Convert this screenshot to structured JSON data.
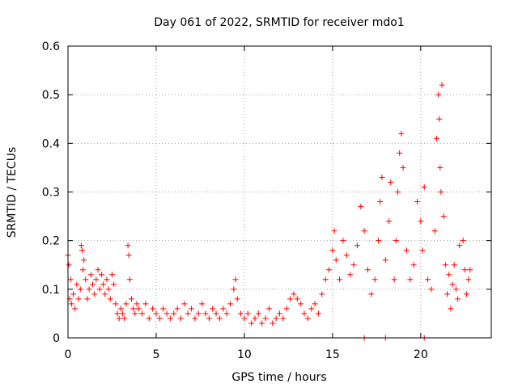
{
  "chart_data": {
    "type": "scatter",
    "title": "Day 061 of 2022, SRMTID for receiver mdo1",
    "xlabel": "GPS time / hours",
    "ylabel": "SRMTID / TECUs",
    "xlim": [
      0,
      24
    ],
    "ylim": [
      0,
      0.6
    ],
    "xticks": [
      {
        "value": 0,
        "label": "0"
      },
      {
        "value": 5,
        "label": "5"
      },
      {
        "value": 10,
        "label": "10"
      },
      {
        "value": 15,
        "label": "15"
      },
      {
        "value": 20,
        "label": "20"
      }
    ],
    "yticks": [
      {
        "value": 0,
        "label": "0"
      },
      {
        "value": 0.1,
        "label": "0.1"
      },
      {
        "value": 0.2,
        "label": "0.2"
      },
      {
        "value": 0.3,
        "label": "0.3"
      },
      {
        "value": 0.4,
        "label": "0.4"
      },
      {
        "value": 0.5,
        "label": "0.5"
      },
      {
        "value": 0.6,
        "label": "0.6"
      }
    ],
    "grid": true,
    "marker": "+",
    "series": [
      {
        "name": "SRMTID",
        "color": "#ff0000",
        "points": [
          [
            0.0,
            0.17
          ],
          [
            0.05,
            0.15
          ],
          [
            0.1,
            0.08
          ],
          [
            0.15,
            0.12
          ],
          [
            0.2,
            0.07
          ],
          [
            0.3,
            0.09
          ],
          [
            0.4,
            0.06
          ],
          [
            0.5,
            0.11
          ],
          [
            0.6,
            0.08
          ],
          [
            0.7,
            0.1
          ],
          [
            0.75,
            0.19
          ],
          [
            0.8,
            0.18
          ],
          [
            0.85,
            0.14
          ],
          [
            0.9,
            0.16
          ],
          [
            1.0,
            0.12
          ],
          [
            1.1,
            0.08
          ],
          [
            1.2,
            0.1
          ],
          [
            1.3,
            0.13
          ],
          [
            1.4,
            0.11
          ],
          [
            1.5,
            0.09
          ],
          [
            1.6,
            0.12
          ],
          [
            1.7,
            0.14
          ],
          [
            1.8,
            0.1
          ],
          [
            1.9,
            0.13
          ],
          [
            2.0,
            0.11
          ],
          [
            2.1,
            0.09
          ],
          [
            2.2,
            0.12
          ],
          [
            2.3,
            0.1
          ],
          [
            2.4,
            0.08
          ],
          [
            2.5,
            0.13
          ],
          [
            2.6,
            0.11
          ],
          [
            2.7,
            0.07
          ],
          [
            2.8,
            0.05
          ],
          [
            2.9,
            0.04
          ],
          [
            3.0,
            0.06
          ],
          [
            3.1,
            0.05
          ],
          [
            3.2,
            0.04
          ],
          [
            3.3,
            0.07
          ],
          [
            3.4,
            0.19
          ],
          [
            3.45,
            0.17
          ],
          [
            3.5,
            0.12
          ],
          [
            3.6,
            0.08
          ],
          [
            3.7,
            0.06
          ],
          [
            3.8,
            0.05
          ],
          [
            3.9,
            0.07
          ],
          [
            4.0,
            0.06
          ],
          [
            4.2,
            0.05
          ],
          [
            4.4,
            0.07
          ],
          [
            4.6,
            0.04
          ],
          [
            4.8,
            0.06
          ],
          [
            5.0,
            0.05
          ],
          [
            5.2,
            0.04
          ],
          [
            5.4,
            0.06
          ],
          [
            5.6,
            0.05
          ],
          [
            5.8,
            0.04
          ],
          [
            6.0,
            0.05
          ],
          [
            6.2,
            0.06
          ],
          [
            6.4,
            0.04
          ],
          [
            6.6,
            0.07
          ],
          [
            6.8,
            0.05
          ],
          [
            7.0,
            0.06
          ],
          [
            7.2,
            0.04
          ],
          [
            7.4,
            0.05
          ],
          [
            7.6,
            0.07
          ],
          [
            7.8,
            0.05
          ],
          [
            8.0,
            0.04
          ],
          [
            8.2,
            0.06
          ],
          [
            8.4,
            0.05
          ],
          [
            8.6,
            0.04
          ],
          [
            8.8,
            0.06
          ],
          [
            9.0,
            0.05
          ],
          [
            9.2,
            0.07
          ],
          [
            9.4,
            0.1
          ],
          [
            9.5,
            0.12
          ],
          [
            9.6,
            0.08
          ],
          [
            9.8,
            0.05
          ],
          [
            10.0,
            0.04
          ],
          [
            10.2,
            0.05
          ],
          [
            10.4,
            0.03
          ],
          [
            10.6,
            0.04
          ],
          [
            10.8,
            0.05
          ],
          [
            11.0,
            0.03
          ],
          [
            11.2,
            0.04
          ],
          [
            11.4,
            0.06
          ],
          [
            11.6,
            0.03
          ],
          [
            11.8,
            0.04
          ],
          [
            12.0,
            0.05
          ],
          [
            12.2,
            0.04
          ],
          [
            12.4,
            0.06
          ],
          [
            12.6,
            0.08
          ],
          [
            12.8,
            0.09
          ],
          [
            13.0,
            0.08
          ],
          [
            13.2,
            0.07
          ],
          [
            13.4,
            0.05
          ],
          [
            13.6,
            0.04
          ],
          [
            13.8,
            0.06
          ],
          [
            14.0,
            0.07
          ],
          [
            14.2,
            0.05
          ],
          [
            14.4,
            0.09
          ],
          [
            14.6,
            0.12
          ],
          [
            14.8,
            0.14
          ],
          [
            15.0,
            0.18
          ],
          [
            15.1,
            0.22
          ],
          [
            15.2,
            0.16
          ],
          [
            15.4,
            0.12
          ],
          [
            15.6,
            0.2
          ],
          [
            15.8,
            0.17
          ],
          [
            16.0,
            0.13
          ],
          [
            16.2,
            0.15
          ],
          [
            16.4,
            0.19
          ],
          [
            16.6,
            0.27
          ],
          [
            16.8,
            0.22
          ],
          [
            17.0,
            0.14
          ],
          [
            17.2,
            0.09
          ],
          [
            17.4,
            0.12
          ],
          [
            17.6,
            0.2
          ],
          [
            17.7,
            0.28
          ],
          [
            17.8,
            0.33
          ],
          [
            18.0,
            0.16
          ],
          [
            18.2,
            0.24
          ],
          [
            18.3,
            0.32
          ],
          [
            18.5,
            0.12
          ],
          [
            18.6,
            0.2
          ],
          [
            18.7,
            0.3
          ],
          [
            18.8,
            0.38
          ],
          [
            18.9,
            0.42
          ],
          [
            19.0,
            0.35
          ],
          [
            19.2,
            0.18
          ],
          [
            19.4,
            0.12
          ],
          [
            19.6,
            0.15
          ],
          [
            19.8,
            0.28
          ],
          [
            20.0,
            0.24
          ],
          [
            20.1,
            0.18
          ],
          [
            20.2,
            0.31
          ],
          [
            20.4,
            0.12
          ],
          [
            20.6,
            0.1
          ],
          [
            20.8,
            0.22
          ],
          [
            20.9,
            0.41
          ],
          [
            21.0,
            0.5
          ],
          [
            21.05,
            0.45
          ],
          [
            21.1,
            0.35
          ],
          [
            21.15,
            0.3
          ],
          [
            21.2,
            0.52
          ],
          [
            21.3,
            0.25
          ],
          [
            21.4,
            0.15
          ],
          [
            21.5,
            0.09
          ],
          [
            21.6,
            0.13
          ],
          [
            21.7,
            0.06
          ],
          [
            21.8,
            0.11
          ],
          [
            21.9,
            0.15
          ],
          [
            22.0,
            0.1
          ],
          [
            22.1,
            0.08
          ],
          [
            22.2,
            0.19
          ],
          [
            22.4,
            0.2
          ],
          [
            22.5,
            0.14
          ],
          [
            22.6,
            0.09
          ],
          [
            22.7,
            0.12
          ],
          [
            22.8,
            0.14
          ],
          [
            16.8,
            0.0
          ],
          [
            18.0,
            0.0
          ],
          [
            20.2,
            0.0
          ]
        ]
      }
    ]
  }
}
